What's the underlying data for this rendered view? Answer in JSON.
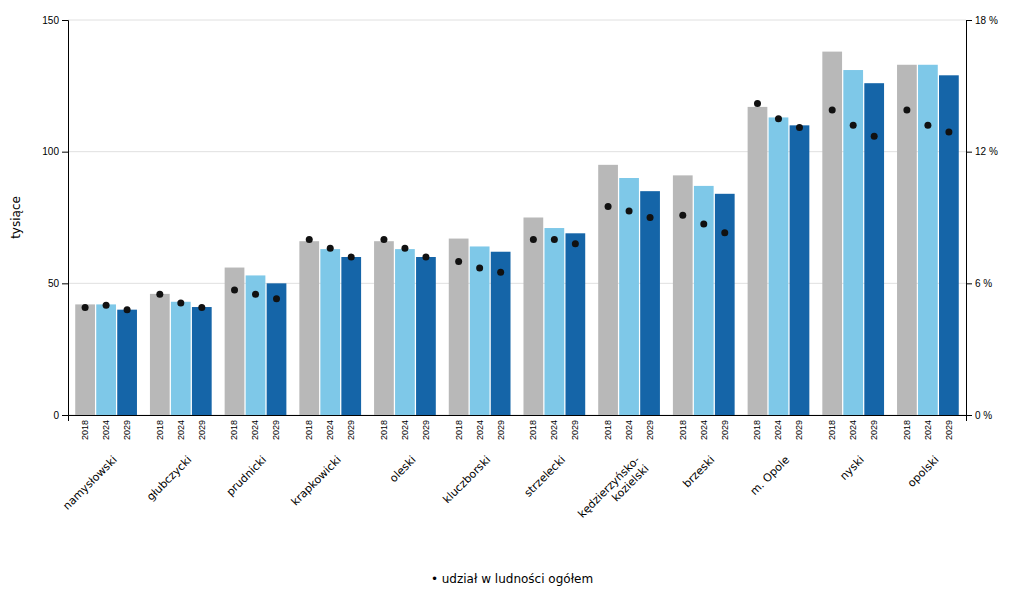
{
  "chart_data": {
    "type": "bar",
    "categories": [
      "namysłowski",
      "głubczycki",
      "prudnicki",
      "krapkowicki",
      "oleski",
      "kluczborski",
      "strzelecki",
      "kędzierzyńsko-\nkozielski",
      "brzeski",
      "m. Opole",
      "nyski",
      "opolski"
    ],
    "series": [
      {
        "name": "2018",
        "type": "bar",
        "color": "#b8b8b8",
        "values": [
          42,
          46,
          56,
          66,
          66,
          67,
          75,
          95,
          91,
          117,
          138,
          133
        ]
      },
      {
        "name": "2024",
        "type": "bar",
        "color": "#7ec8e8",
        "values": [
          42,
          43,
          53,
          63,
          63,
          64,
          71,
          90,
          87,
          113,
          131,
          133
        ]
      },
      {
        "name": "2029",
        "type": "bar",
        "color": "#1565a8",
        "values": [
          40,
          41,
          50,
          60,
          60,
          62,
          69,
          85,
          84,
          110,
          126,
          129
        ]
      },
      {
        "type": "scatter",
        "axis": "y2",
        "color": "#111111",
        "marker": "circle",
        "values": [
          4.9,
          5.5,
          5.7,
          8.0,
          8.0,
          7.0,
          8.0,
          9.5,
          9.1,
          14.2,
          13.9,
          13.9
        ]
      },
      {
        "type": "scatter",
        "axis": "y2",
        "color": "#111111",
        "marker": "circle",
        "values": [
          5.0,
          5.1,
          5.5,
          7.6,
          7.6,
          6.7,
          8.0,
          9.3,
          8.7,
          13.5,
          13.2,
          13.2
        ]
      },
      {
        "type": "scatter",
        "axis": "y2",
        "color": "#111111",
        "marker": "circle",
        "values": [
          4.8,
          4.9,
          5.3,
          7.2,
          7.2,
          6.5,
          7.8,
          9.0,
          8.3,
          13.1,
          12.7,
          12.9
        ]
      }
    ],
    "ylabel": "tysiące",
    "ylim": [
      0,
      150
    ],
    "yticks": [
      0,
      50,
      100,
      150
    ],
    "y2lim": [
      0,
      18
    ],
    "y2ticks": [
      {
        "value": 0,
        "label": "0 %"
      },
      {
        "value": 6,
        "label": "6 %"
      },
      {
        "value": 12,
        "label": "12 %"
      },
      {
        "value": 18,
        "label": "18 %"
      }
    ],
    "grid": true,
    "annotation": "• udział w ludności ogółem"
  }
}
